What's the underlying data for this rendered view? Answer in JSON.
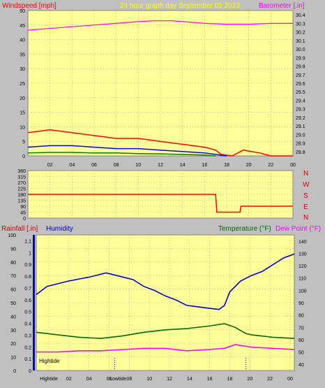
{
  "colors": {
    "background": "#c0c0c0",
    "plot_bg": "#ffff99",
    "grid": "#999999",
    "wind": "#ff0000",
    "gust": "#ff0000",
    "wind_blue": "#0000ff",
    "wind_green": "#008000",
    "barometer": "#ff00ff",
    "direction": "#ff0000",
    "humidity": "#0000cc",
    "temperature": "#006600",
    "dewpoint": "#ff00ff",
    "title": "#ffff00",
    "rain_label": "#cc0000"
  },
  "header": {
    "wind_label": "Windspeed [mph]",
    "title": "24 hour graph day    September 01 2023",
    "baro_label": "Barometer [.in]"
  },
  "middle": {
    "compass": [
      "N",
      "W",
      "S",
      "E",
      "N"
    ]
  },
  "bottom_header": {
    "rain_label": "Rainfall [.in]",
    "humidity_label": "Humidity",
    "temp_label": "Temperature (°F)",
    "dew_label": "Dew Point (°F)"
  },
  "tide": {
    "hightide_label": "Hightide",
    "hightide_axis_label": "Hightide",
    "lowtide_axis_label": "Lowtide"
  },
  "chart_data": [
    {
      "type": "line",
      "x_ticks": [
        "02",
        "04",
        "06",
        "08",
        "10",
        "12",
        "14",
        "16",
        "18",
        "20",
        "22",
        "00"
      ],
      "left_axis": {
        "label": "Windspeed [mph]",
        "ticks": [
          0,
          5,
          10,
          15,
          20,
          25,
          30,
          35,
          40,
          45,
          50
        ],
        "ylim": [
          0,
          50
        ]
      },
      "right_axis": {
        "label": "Barometer [.in]",
        "ticks": [
          28.8,
          28.9,
          29.0,
          29.1,
          29.2,
          29.3,
          29.4,
          29.5,
          29.6,
          29.7,
          29.8,
          29.9,
          30.0,
          30.1,
          30.2,
          30.3,
          30.4
        ],
        "ylim": [
          28.75,
          30.45
        ]
      },
      "series": [
        {
          "name": "Barometer [.in]",
          "axis": "right",
          "x": [
            0,
            2,
            4,
            6,
            8,
            10,
            11.5,
            13,
            14,
            16,
            18,
            20,
            22,
            24
          ],
          "y": [
            30.22,
            30.24,
            30.26,
            30.28,
            30.3,
            30.32,
            30.33,
            30.33,
            30.32,
            30.3,
            30.29,
            30.29,
            30.3,
            30.3
          ]
        },
        {
          "axis": "left",
          "role": "gust",
          "x": [
            0,
            2,
            4,
            6,
            8,
            10,
            12,
            14,
            16,
            17,
            17.5,
            18.5,
            19.5,
            21,
            22,
            24
          ],
          "y": [
            8,
            9,
            8,
            7,
            6,
            6,
            5,
            4,
            3,
            2,
            0.5,
            0,
            2,
            1,
            0,
            0
          ]
        },
        {
          "axis": "left",
          "role": "average",
          "x": [
            0,
            2,
            4,
            6,
            8,
            10,
            12,
            14,
            16,
            17,
            18
          ],
          "y": [
            3,
            3.5,
            3.5,
            3,
            2.5,
            2.5,
            2,
            1.5,
            1,
            0.5,
            0
          ]
        },
        {
          "axis": "left",
          "role": "low",
          "x": [
            0,
            2,
            4,
            6,
            8,
            10,
            12,
            14,
            16,
            17
          ],
          "y": [
            1,
            1.2,
            1.2,
            1,
            1,
            0.8,
            0.7,
            0.5,
            0.3,
            0
          ]
        }
      ]
    },
    {
      "type": "line",
      "x_ticks": [
        "02",
        "04",
        "06",
        "08",
        "10",
        "12",
        "14",
        "16",
        "18",
        "20",
        "22",
        "00"
      ],
      "left_axis": {
        "ticks": [
          0,
          45,
          90,
          135,
          180,
          225,
          270,
          315,
          360
        ],
        "ylim": [
          0,
          360
        ]
      },
      "series": [
        {
          "axis": "left",
          "role": "direction",
          "x": [
            0,
            17.0,
            17.1,
            17.5,
            17.6,
            19.2,
            19.3,
            24
          ],
          "y": [
            180,
            180,
            45,
            45,
            45,
            45,
            90,
            90
          ]
        }
      ]
    },
    {
      "type": "line",
      "x_ticks": [
        "Hightide",
        "02",
        "04",
        "06",
        "08",
        "10",
        "12",
        "14",
        "16",
        "18",
        "20",
        "22",
        "00"
      ],
      "humidity_axis": {
        "label": "Humidity",
        "ticks": [
          0,
          10,
          20,
          30,
          40,
          50,
          60,
          70,
          80,
          90,
          100
        ],
        "ylim": [
          0,
          100
        ]
      },
      "rain_axis": {
        "label": "Rainfall [.in]",
        "ticks": [
          0,
          0.1,
          0.2,
          0.3,
          0.4,
          0.5,
          0.6,
          0.7,
          0.8,
          0.9,
          1.0,
          1.1
        ],
        "ylim": [
          0,
          1.15
        ]
      },
      "temp_axis": {
        "label": "Temperature (°F)",
        "ticks": [
          40,
          50,
          60,
          70,
          80,
          90,
          100,
          110,
          120,
          130,
          140
        ],
        "ylim": [
          35,
          145
        ]
      },
      "series": [
        {
          "name": "Humidity",
          "axis": "humidity",
          "x": [
            0,
            1,
            3,
            5,
            6.5,
            7.5,
            9,
            10,
            11,
            12,
            13,
            14,
            15,
            16,
            17,
            17.5,
            18,
            19,
            20,
            21,
            22,
            23,
            24
          ],
          "y": [
            56,
            62,
            66,
            69,
            72,
            70,
            67,
            62,
            59,
            55,
            52,
            48,
            47,
            46,
            45,
            48,
            58,
            66,
            70,
            73,
            78,
            83,
            86
          ]
        },
        {
          "name": "Temperature (°F)",
          "axis": "temp",
          "x": [
            0,
            2,
            4,
            6,
            8,
            10,
            12,
            14,
            16,
            17.5,
            18.5,
            19.5,
            20,
            22,
            24
          ],
          "y": [
            66,
            64,
            62,
            61,
            63,
            66,
            68,
            69,
            71,
            73,
            70,
            65,
            64,
            62,
            61
          ]
        },
        {
          "name": "Dew Point (°F)",
          "axis": "temp",
          "x": [
            0,
            2,
            4,
            6,
            8,
            10,
            12,
            14,
            16,
            17.5,
            18.5,
            20,
            22,
            24
          ],
          "y": [
            50,
            50,
            51,
            51,
            52,
            53,
            53,
            51,
            52,
            53,
            56,
            54,
            53,
            52
          ]
        }
      ]
    }
  ]
}
